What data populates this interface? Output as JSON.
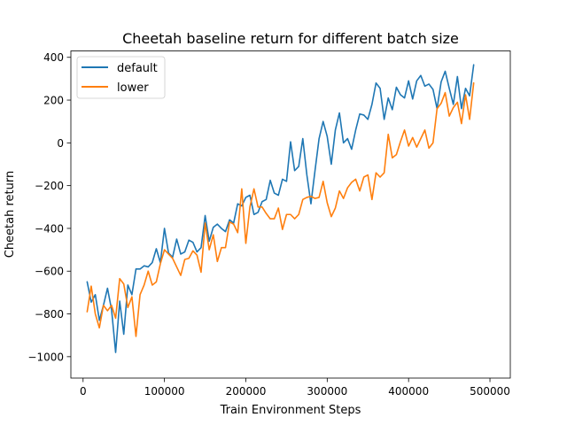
{
  "colors": {
    "default": "#1f77b4",
    "lower": "#ff7f0e",
    "axes": "#000000",
    "background": "#ffffff"
  },
  "chart_data": {
    "type": "line",
    "title": "Cheetah baseline return for different batch size",
    "xlabel": "Train Environment Steps",
    "ylabel": "Cheetah return",
    "xlim": [
      -15000,
      525000
    ],
    "ylim": [
      -1100,
      430
    ],
    "grid": false,
    "legend_position": "top-left",
    "x_ticks": [
      {
        "value": 0,
        "label": "0"
      },
      {
        "value": 100000,
        "label": "100000"
      },
      {
        "value": 200000,
        "label": "200000"
      },
      {
        "value": 300000,
        "label": "300000"
      },
      {
        "value": 400000,
        "label": "400000"
      },
      {
        "value": 500000,
        "label": "500000"
      }
    ],
    "y_ticks": [
      {
        "value": -1000,
        "label": "−1000"
      },
      {
        "value": -800,
        "label": "−800"
      },
      {
        "value": -600,
        "label": "−600"
      },
      {
        "value": -400,
        "label": "−400"
      },
      {
        "value": -200,
        "label": "−200"
      },
      {
        "value": 0,
        "label": "0"
      },
      {
        "value": 200,
        "label": "200"
      },
      {
        "value": 400,
        "label": "400"
      }
    ],
    "series": [
      {
        "name": "default",
        "color": "#1f77b4",
        "points": [
          [
            5000,
            -650
          ],
          [
            10000,
            -745
          ],
          [
            15000,
            -710
          ],
          [
            20000,
            -830
          ],
          [
            25000,
            -760
          ],
          [
            30000,
            -680
          ],
          [
            35000,
            -780
          ],
          [
            40000,
            -980
          ],
          [
            45000,
            -740
          ],
          [
            50000,
            -895
          ],
          [
            55000,
            -665
          ],
          [
            60000,
            -710
          ],
          [
            65000,
            -590
          ],
          [
            70000,
            -590
          ],
          [
            75000,
            -575
          ],
          [
            80000,
            -580
          ],
          [
            85000,
            -560
          ],
          [
            90000,
            -495
          ],
          [
            95000,
            -560
          ],
          [
            100000,
            -400
          ],
          [
            105000,
            -515
          ],
          [
            110000,
            -535
          ],
          [
            115000,
            -450
          ],
          [
            120000,
            -520
          ],
          [
            125000,
            -510
          ],
          [
            130000,
            -455
          ],
          [
            135000,
            -465
          ],
          [
            140000,
            -510
          ],
          [
            145000,
            -490
          ],
          [
            150000,
            -340
          ],
          [
            155000,
            -460
          ],
          [
            160000,
            -395
          ],
          [
            165000,
            -380
          ],
          [
            170000,
            -400
          ],
          [
            175000,
            -415
          ],
          [
            180000,
            -360
          ],
          [
            185000,
            -375
          ],
          [
            190000,
            -285
          ],
          [
            195000,
            -295
          ],
          [
            200000,
            -255
          ],
          [
            205000,
            -245
          ],
          [
            210000,
            -335
          ],
          [
            215000,
            -325
          ],
          [
            220000,
            -275
          ],
          [
            225000,
            -265
          ],
          [
            230000,
            -175
          ],
          [
            235000,
            -235
          ],
          [
            240000,
            -245
          ],
          [
            245000,
            -170
          ],
          [
            250000,
            -180
          ],
          [
            255000,
            5
          ],
          [
            260000,
            -130
          ],
          [
            265000,
            -110
          ],
          [
            270000,
            20
          ],
          [
            275000,
            -150
          ],
          [
            280000,
            -285
          ],
          [
            285000,
            -130
          ],
          [
            290000,
            20
          ],
          [
            295000,
            100
          ],
          [
            300000,
            30
          ],
          [
            305000,
            -100
          ],
          [
            310000,
            60
          ],
          [
            315000,
            140
          ],
          [
            320000,
            0
          ],
          [
            325000,
            20
          ],
          [
            330000,
            -30
          ],
          [
            335000,
            60
          ],
          [
            340000,
            135
          ],
          [
            345000,
            130
          ],
          [
            350000,
            110
          ],
          [
            355000,
            180
          ],
          [
            360000,
            280
          ],
          [
            365000,
            255
          ],
          [
            370000,
            110
          ],
          [
            375000,
            210
          ],
          [
            380000,
            155
          ],
          [
            385000,
            260
          ],
          [
            390000,
            225
          ],
          [
            395000,
            210
          ],
          [
            400000,
            290
          ],
          [
            405000,
            205
          ],
          [
            410000,
            290
          ],
          [
            415000,
            315
          ],
          [
            420000,
            265
          ],
          [
            425000,
            275
          ],
          [
            430000,
            250
          ],
          [
            435000,
            160
          ],
          [
            440000,
            285
          ],
          [
            445000,
            335
          ],
          [
            450000,
            255
          ],
          [
            455000,
            180
          ],
          [
            460000,
            310
          ],
          [
            465000,
            160
          ],
          [
            470000,
            255
          ],
          [
            475000,
            220
          ],
          [
            480000,
            365
          ]
        ]
      },
      {
        "name": "lower",
        "color": "#ff7f0e",
        "points": [
          [
            5000,
            -790
          ],
          [
            10000,
            -670
          ],
          [
            15000,
            -800
          ],
          [
            20000,
            -865
          ],
          [
            25000,
            -760
          ],
          [
            30000,
            -785
          ],
          [
            35000,
            -760
          ],
          [
            40000,
            -820
          ],
          [
            45000,
            -635
          ],
          [
            50000,
            -660
          ],
          [
            55000,
            -770
          ],
          [
            60000,
            -720
          ],
          [
            65000,
            -905
          ],
          [
            70000,
            -710
          ],
          [
            75000,
            -665
          ],
          [
            80000,
            -600
          ],
          [
            85000,
            -665
          ],
          [
            90000,
            -650
          ],
          [
            95000,
            -565
          ],
          [
            100000,
            -500
          ],
          [
            105000,
            -520
          ],
          [
            110000,
            -540
          ],
          [
            115000,
            -580
          ],
          [
            120000,
            -620
          ],
          [
            125000,
            -545
          ],
          [
            130000,
            -540
          ],
          [
            135000,
            -505
          ],
          [
            140000,
            -525
          ],
          [
            145000,
            -605
          ],
          [
            150000,
            -375
          ],
          [
            155000,
            -500
          ],
          [
            160000,
            -430
          ],
          [
            165000,
            -555
          ],
          [
            170000,
            -490
          ],
          [
            175000,
            -490
          ],
          [
            180000,
            -370
          ],
          [
            185000,
            -380
          ],
          [
            190000,
            -420
          ],
          [
            195000,
            -215
          ],
          [
            200000,
            -470
          ],
          [
            205000,
            -300
          ],
          [
            210000,
            -215
          ],
          [
            215000,
            -300
          ],
          [
            220000,
            -300
          ],
          [
            225000,
            -330
          ],
          [
            230000,
            -355
          ],
          [
            235000,
            -355
          ],
          [
            240000,
            -305
          ],
          [
            245000,
            -405
          ],
          [
            250000,
            -335
          ],
          [
            255000,
            -335
          ],
          [
            260000,
            -355
          ],
          [
            265000,
            -335
          ],
          [
            270000,
            -265
          ],
          [
            275000,
            -255
          ],
          [
            280000,
            -250
          ],
          [
            285000,
            -260
          ],
          [
            290000,
            -255
          ],
          [
            295000,
            -180
          ],
          [
            300000,
            -280
          ],
          [
            305000,
            -345
          ],
          [
            310000,
            -305
          ],
          [
            315000,
            -225
          ],
          [
            320000,
            -260
          ],
          [
            325000,
            -210
          ],
          [
            330000,
            -185
          ],
          [
            335000,
            -170
          ],
          [
            340000,
            -225
          ],
          [
            345000,
            -160
          ],
          [
            350000,
            -150
          ],
          [
            355000,
            -265
          ],
          [
            360000,
            -140
          ],
          [
            365000,
            -160
          ],
          [
            370000,
            -140
          ],
          [
            375000,
            40
          ],
          [
            380000,
            -70
          ],
          [
            385000,
            -55
          ],
          [
            390000,
            5
          ],
          [
            395000,
            60
          ],
          [
            400000,
            -15
          ],
          [
            405000,
            25
          ],
          [
            410000,
            -20
          ],
          [
            415000,
            20
          ],
          [
            420000,
            60
          ],
          [
            425000,
            -25
          ],
          [
            430000,
            0
          ],
          [
            435000,
            160
          ],
          [
            440000,
            185
          ],
          [
            445000,
            235
          ],
          [
            450000,
            125
          ],
          [
            455000,
            165
          ],
          [
            460000,
            190
          ],
          [
            465000,
            90
          ],
          [
            470000,
            225
          ],
          [
            475000,
            110
          ],
          [
            480000,
            280
          ]
        ]
      }
    ]
  }
}
